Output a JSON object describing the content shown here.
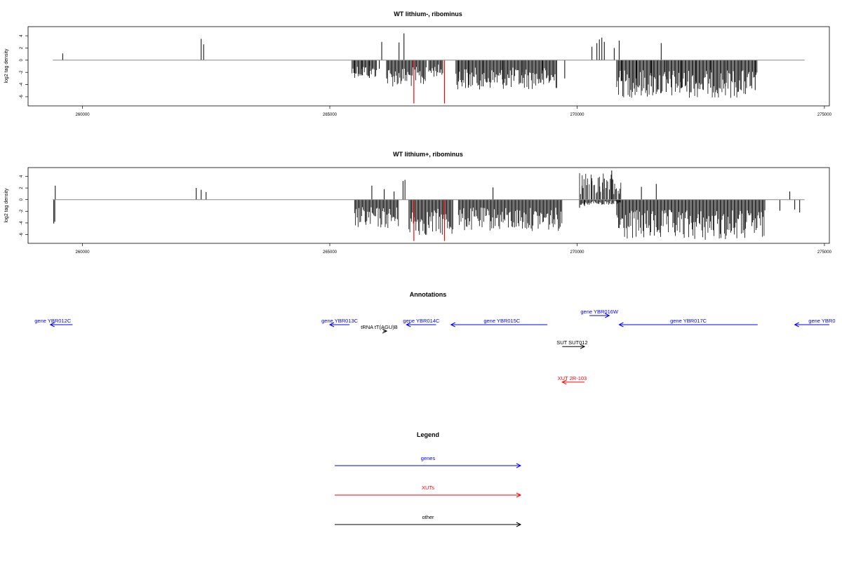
{
  "chart_data": [
    {
      "type": "bar",
      "title": "WT lithium-, ribominus",
      "ylabel": "log2 tag density",
      "xlim": [
        258900,
        275100
      ],
      "ylim": [
        -7.5,
        5.5
      ],
      "x_ticks": [
        260000,
        265000,
        270000,
        275000
      ],
      "y_ticks": [
        -6,
        -4,
        -2,
        0,
        2,
        4
      ],
      "baseline_x_range": [
        259400,
        274600
      ],
      "colors": {
        "bars": "#000000",
        "highlight": "#ff0000",
        "baseline": "#888888"
      },
      "bars": [
        [
          259600,
          1.1
        ],
        [
          262400,
          3.5
        ],
        [
          262450,
          2.6
        ],
        [
          266050,
          3.0
        ],
        [
          266400,
          2.9
        ],
        [
          266500,
          4.4
        ],
        [
          270400,
          2.8
        ],
        [
          270450,
          3.4
        ],
        [
          270500,
          3.7
        ],
        [
          270550,
          3.0
        ],
        [
          270300,
          2.2
        ],
        [
          270750,
          2.0
        ],
        [
          270850,
          3.2
        ],
        [
          271700,
          2.8
        ],
        [
          265500,
          -2.1
        ],
        [
          265650,
          -2.5
        ],
        [
          265800,
          -2.9
        ],
        [
          266000,
          -1.4
        ],
        [
          266150,
          -3.0
        ],
        [
          267600,
          -3.5
        ],
        [
          267800,
          -4.5
        ],
        [
          268100,
          -4.3
        ],
        [
          268500,
          -4.0
        ],
        [
          268900,
          -3.8
        ],
        [
          269300,
          -3.2
        ],
        [
          269750,
          -3.0
        ],
        [
          270900,
          -3.4
        ],
        [
          271200,
          -4.1
        ],
        [
          271500,
          -4.3
        ],
        [
          271800,
          -5.2
        ],
        [
          272100,
          -4.6
        ],
        [
          272400,
          -3.9
        ],
        [
          272700,
          -4.5
        ],
        [
          273000,
          -4.3
        ],
        [
          273300,
          -4.8
        ],
        [
          273600,
          -4.9
        ]
      ],
      "dense_regions": [
        {
          "x_range": [
            265450,
            265950
          ],
          "min": -2.9
        },
        {
          "x_range": [
            266150,
            266950
          ],
          "min": -4.4
        },
        {
          "x_range": [
            267000,
            267300
          ],
          "min": -2.8
        },
        {
          "x_range": [
            267550,
            269600
          ],
          "min": -4.8
        },
        {
          "x_range": [
            270800,
            273650
          ],
          "min": -6.2
        }
      ],
      "highlight_bars": [
        [
          266700,
          -7.1
        ],
        [
          267320,
          -7.1
        ]
      ]
    },
    {
      "type": "bar",
      "title": "WT lithium+, ribominus",
      "ylabel": "log2 tag density",
      "xlim": [
        258900,
        275100
      ],
      "ylim": [
        -7.5,
        5.5
      ],
      "x_ticks": [
        260000,
        265000,
        270000,
        275000
      ],
      "y_ticks": [
        -6,
        -4,
        -2,
        0,
        2,
        4
      ],
      "baseline_x_range": [
        259400,
        274600
      ],
      "colors": {
        "bars": "#000000",
        "highlight": "#ff0000",
        "baseline": "#888888"
      },
      "bars": [
        [
          259450,
          2.4
        ],
        [
          259420,
          -4.1
        ],
        [
          259440,
          -3.8
        ],
        [
          262300,
          2.0
        ],
        [
          262400,
          1.7
        ],
        [
          262500,
          1.3
        ],
        [
          265850,
          2.4
        ],
        [
          266100,
          1.8
        ],
        [
          266300,
          1.4
        ],
        [
          266480,
          3.2
        ],
        [
          266520,
          3.4
        ],
        [
          268300,
          2.1
        ],
        [
          270100,
          2.4
        ],
        [
          270300,
          3.2
        ],
        [
          270450,
          3.9
        ],
        [
          270550,
          3.6
        ],
        [
          270700,
          5.0
        ],
        [
          271300,
          2.2
        ],
        [
          271600,
          2.7
        ],
        [
          274300,
          1.4
        ],
        [
          274100,
          -1.9
        ],
        [
          274400,
          -1.7
        ],
        [
          274500,
          -2.2
        ],
        [
          270050,
          -1.4
        ],
        [
          270150,
          -1.1
        ]
      ],
      "dense_regions": [
        {
          "x_range": [
            265500,
            266400
          ],
          "min": -5.0
        },
        {
          "x_range": [
            266600,
            267500
          ],
          "min": -6.2
        },
        {
          "x_range": [
            267600,
            269700
          ],
          "min": -5.4
        },
        {
          "x_range": [
            270050,
            270900
          ],
          "min": -0.9,
          "positive_max": 4.6
        },
        {
          "x_range": [
            270800,
            273800
          ],
          "min": -7.0
        }
      ],
      "highlight_bars": [
        [
          266700,
          -7.1
        ],
        [
          267320,
          -7.1
        ]
      ]
    }
  ],
  "annotations": {
    "title": "Annotations",
    "xlim": [
      258900,
      275100
    ],
    "items": [
      {
        "label": "gene YBR012C",
        "color": "#0000ff",
        "x_start": 259800,
        "x_end": 259350,
        "row": 0,
        "label_x": 259400
      },
      {
        "label": "gene YBR013C",
        "color": "#0000ff",
        "x_start": 265400,
        "x_end": 265000,
        "row": 0,
        "label_x": 265200
      },
      {
        "label": "gene YBR014C",
        "color": "#0000ff",
        "x_start": 267150,
        "x_end": 266550,
        "row": 0,
        "label_x": 266850
      },
      {
        "label": "gene YBR015C",
        "color": "#0000ff",
        "x_start": 269400,
        "x_end": 267450,
        "row": 0,
        "label_x": 268480
      },
      {
        "label": "gene YBR016W",
        "color": "#0000ff",
        "x_start": 270250,
        "x_end": 270650,
        "row": -1,
        "label_x": 270450
      },
      {
        "label": "gene YBR017C",
        "color": "#0000ff",
        "x_start": 273650,
        "x_end": 270850,
        "row": 0,
        "label_x": 272250
      },
      {
        "label": "gene YBR0",
        "color": "#0000ff",
        "x_start": 275100,
        "x_end": 274400,
        "row": 0,
        "label_x": 274950
      },
      {
        "label": "tRNA tT(AGU)B",
        "color": "#000000",
        "x_start": 266080,
        "x_end": 266150,
        "row": 0.7,
        "label_x": 266000
      },
      {
        "label": "SUT SUT012",
        "color": "#000000",
        "x_start": 269700,
        "x_end": 270150,
        "row": 2.4,
        "label_x": 269900
      },
      {
        "label": "XUT 2R-103",
        "color": "#ff0000",
        "x_start": 270150,
        "x_end": 269700,
        "row": 6.3,
        "label_x": 269900
      }
    ]
  },
  "legend": {
    "title": "Legend",
    "entries": [
      {
        "label": "genes",
        "color": "#0000ff"
      },
      {
        "label": "XUTs",
        "color": "#ff0000"
      },
      {
        "label": "other",
        "color": "#000000"
      }
    ]
  }
}
